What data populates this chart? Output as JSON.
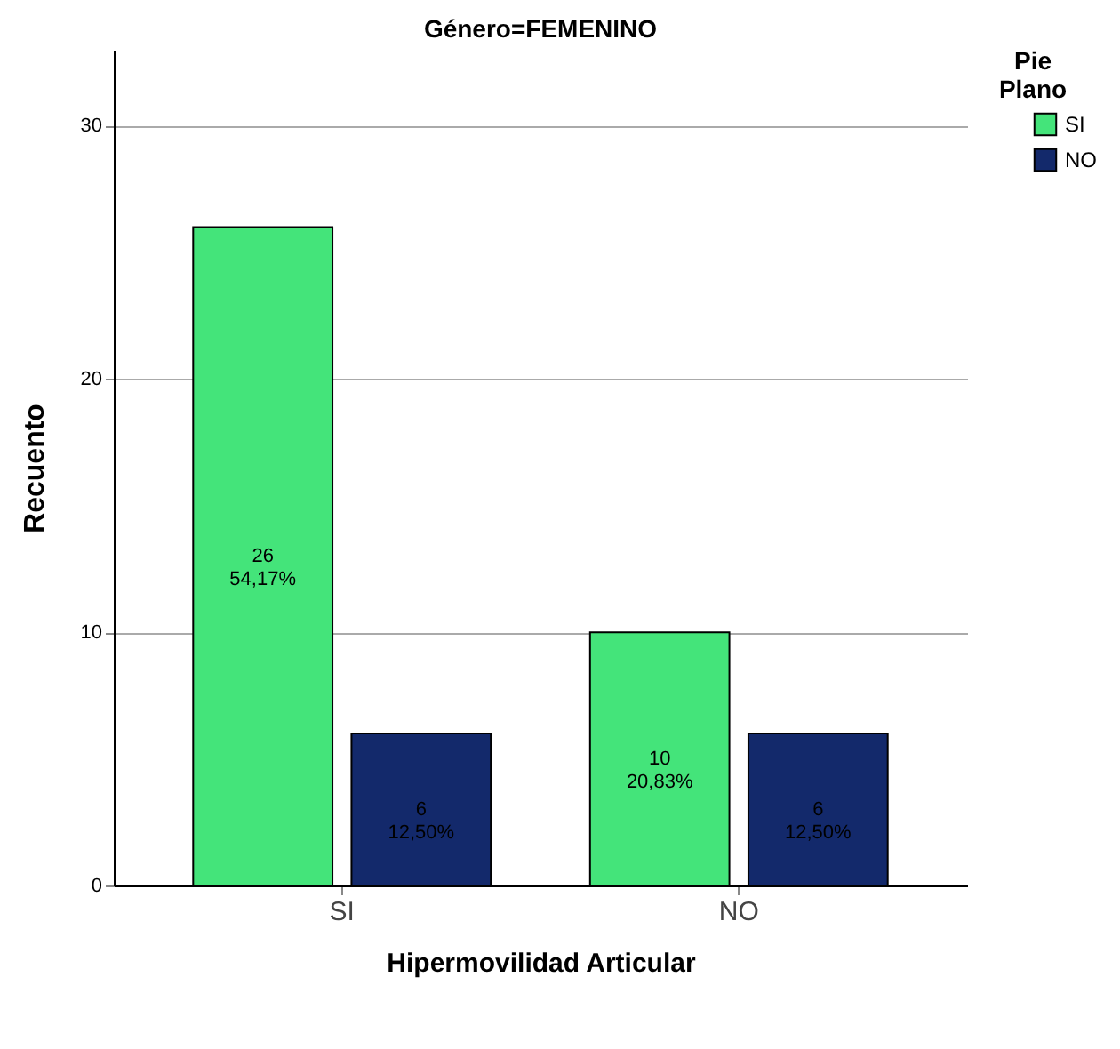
{
  "chart_data": {
    "type": "bar",
    "title": "Género=FEMENINO",
    "xlabel": "Hipermovilidad Articular",
    "ylabel": "Recuento",
    "legend_title": "Pie Plano",
    "categories": [
      "SI",
      "NO"
    ],
    "series": [
      {
        "name": "SI",
        "color": "#44e47a",
        "values": [
          26,
          10
        ],
        "value_labels": [
          "26\n54,17%",
          "10\n20,83%"
        ]
      },
      {
        "name": "NO",
        "color": "#13296b",
        "values": [
          6,
          6
        ],
        "value_labels": [
          "6\n12,50%",
          "6\n12,50%"
        ]
      }
    ],
    "ylim": [
      0,
      33
    ],
    "yticks": [
      0,
      10,
      20,
      30
    ],
    "grid": "y",
    "legend": "top right"
  }
}
